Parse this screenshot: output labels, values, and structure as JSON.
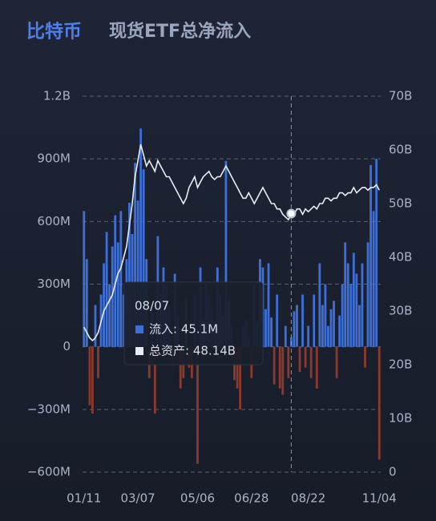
{
  "chart_data": {
    "type": "combo",
    "title": "比特币",
    "subtitle": "现货ETF总净流入",
    "categories": [
      "01/11",
      null,
      null,
      null,
      null,
      null,
      null,
      null,
      null,
      null,
      null,
      null,
      null,
      null,
      null,
      null,
      null,
      null,
      null,
      "03/07",
      null,
      null,
      null,
      null,
      null,
      null,
      null,
      null,
      null,
      null,
      null,
      null,
      null,
      null,
      null,
      null,
      null,
      null,
      null,
      null,
      "05/06",
      null,
      null,
      null,
      null,
      null,
      null,
      null,
      null,
      null,
      null,
      null,
      null,
      null,
      null,
      null,
      null,
      null,
      null,
      "06/28",
      null,
      null,
      null,
      null,
      null,
      null,
      null,
      null,
      null,
      null,
      null,
      null,
      null,
      null,
      null,
      null,
      null,
      null,
      null,
      "08/22",
      null,
      null,
      null,
      null,
      null,
      null,
      null,
      null,
      null,
      null,
      null,
      null,
      null,
      null,
      null,
      null,
      null,
      null,
      null,
      null,
      null,
      null,
      null,
      null,
      "11/04"
    ],
    "series": [
      {
        "type": "bar",
        "color": "#3d6fd6",
        "negative_color": "#8a3a2c",
        "values": [
          650,
          420,
          -280,
          -320,
          200,
          -150,
          250,
          400,
          550,
          300,
          480,
          630,
          500,
          650,
          250,
          420,
          690,
          540,
          880,
          700,
          1045,
          850,
          420,
          -150,
          210,
          -320,
          530,
          250,
          380,
          300,
          190,
          -85,
          350,
          150,
          -200,
          -150,
          230,
          -100,
          -150,
          250,
          -560,
          380,
          130,
          300,
          250,
          180,
          120,
          380,
          250,
          150,
          890,
          220,
          100,
          -160,
          -200,
          -300,
          100,
          130,
          50,
          -150,
          300,
          120,
          420,
          380,
          180,
          400,
          140,
          -180,
          250,
          -200,
          -230,
          100,
          -150,
          45.1,
          170,
          200,
          -120,
          250,
          -100,
          100,
          -150,
          250,
          -200,
          400,
          200,
          300,
          100,
          180,
          220,
          -150,
          150,
          300,
          500,
          400,
          300,
          450,
          350,
          200,
          400,
          -100,
          500,
          870,
          650,
          900,
          -540
        ]
      },
      {
        "type": "line",
        "axis": "y2",
        "color": "#e8eef8",
        "values": [
          27,
          26,
          25,
          24.5,
          25,
          26,
          28,
          30,
          31,
          32,
          33,
          35,
          37,
          38,
          40,
          42,
          46,
          50,
          55,
          58,
          61,
          59,
          57,
          58,
          57,
          56,
          58,
          57,
          56,
          55,
          55,
          54,
          53,
          52,
          51,
          50,
          51,
          53,
          54,
          55,
          53,
          54,
          55,
          55.5,
          56,
          55,
          54.5,
          55,
          55,
          56,
          57,
          56,
          55,
          54,
          53,
          52,
          51,
          51,
          52,
          51,
          50,
          51,
          52,
          53,
          52,
          51,
          50,
          50,
          49,
          49,
          48,
          47.5,
          47,
          48.14,
          48,
          49,
          49,
          48,
          49,
          48.5,
          49,
          49.5,
          49,
          50,
          50,
          51,
          51,
          50.5,
          51,
          51,
          52,
          52,
          51.5,
          52,
          52,
          53,
          52,
          52.5,
          53,
          53,
          52.5,
          53,
          53,
          53.5,
          52.5
        ]
      }
    ],
    "ylim": [
      -600,
      1200
    ],
    "yticks": [
      {
        "value": -600,
        "label": "−600M"
      },
      {
        "value": -300,
        "label": "−300M"
      },
      0,
      {
        "value": 300,
        "label": "300M"
      },
      {
        "value": 600,
        "label": "600M"
      },
      {
        "value": 900,
        "label": "900M"
      },
      {
        "value": 1200,
        "label": "1.2B"
      }
    ],
    "y2lim": [
      0,
      70
    ],
    "y2ticks": [
      0,
      {
        "value": 10,
        "label": "10B"
      },
      {
        "value": 20,
        "label": "20B"
      },
      {
        "value": 30,
        "label": "30B"
      },
      {
        "value": 40,
        "label": "40B"
      },
      {
        "value": 50,
        "label": "50B"
      },
      {
        "value": 60,
        "label": "60B"
      },
      {
        "value": 70,
        "label": "70B"
      }
    ],
    "grid": true,
    "tooltip": {
      "index": 73,
      "title": "08/07",
      "lines": [
        "流入: 45.1M",
        "总资产: 48.14B"
      ]
    }
  }
}
